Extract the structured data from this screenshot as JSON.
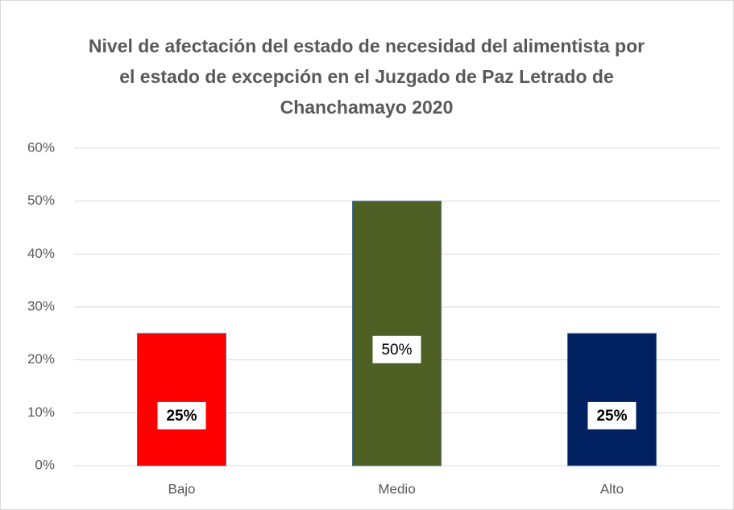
{
  "chart_data": {
    "type": "bar",
    "title": "Nivel de afectación del estado de necesidad del alimentista por el estado de excepción en el Juzgado de Paz Letrado de Chanchamayo 2020",
    "categories": [
      "Bajo",
      "Medio",
      "Alto"
    ],
    "values": [
      25,
      50,
      25
    ],
    "value_labels": [
      "25%",
      "50%",
      "25%"
    ],
    "value_label_bold": [
      true,
      false,
      true
    ],
    "colors": [
      "#ff0000",
      "#4e5f24",
      "#002060"
    ],
    "ylim": [
      0,
      60
    ],
    "yticks": [
      {
        "value": 0,
        "label": "0%"
      },
      {
        "value": 10,
        "label": "10%"
      },
      {
        "value": 20,
        "label": "20%"
      },
      {
        "value": 30,
        "label": "30%"
      },
      {
        "value": 40,
        "label": "40%"
      },
      {
        "value": 50,
        "label": "50%"
      },
      {
        "value": 60,
        "label": "60%"
      }
    ],
    "grid": true
  }
}
